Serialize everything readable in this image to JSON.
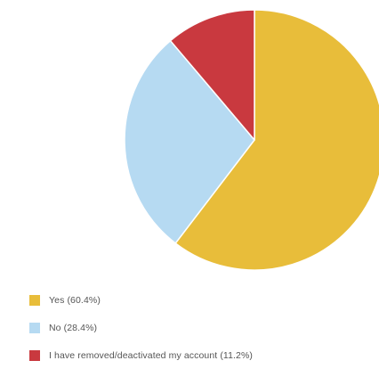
{
  "chart_data": {
    "type": "pie",
    "start": "top",
    "direction": "clockwise",
    "slices": [
      {
        "label": "Yes (60.4%)",
        "value": 60.4,
        "color": "#E8BD3A"
      },
      {
        "label": "No (28.4%)",
        "value": 28.4,
        "color": "#B6DAF2"
      },
      {
        "label": "I have removed/deactivated my account (11.2%)",
        "value": 11.2,
        "color": "#C9393F"
      }
    ],
    "legend": "bottom-left"
  }
}
